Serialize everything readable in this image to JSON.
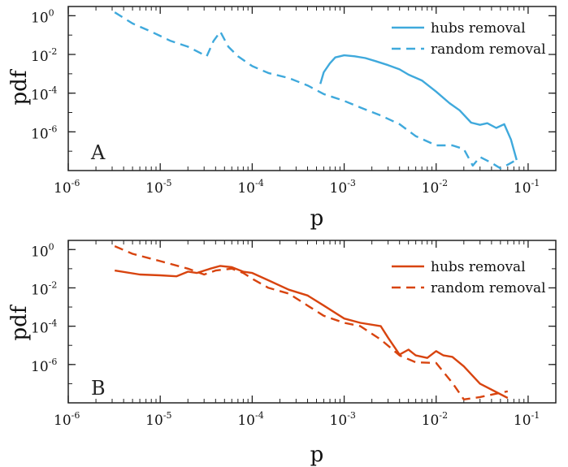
{
  "chart_data": [
    {
      "type": "line",
      "panel_label": "A",
      "xlabel": "p",
      "ylabel": "pdf",
      "xscale": "log",
      "yscale": "log",
      "xlim": [
        1e-06,
        0.2
      ],
      "ylim": [
        1e-08,
        3
      ],
      "x_ticks": [
        {
          "base": "10",
          "exp": "-6"
        },
        {
          "base": "10",
          "exp": "-5"
        },
        {
          "base": "10",
          "exp": "-4"
        },
        {
          "base": "10",
          "exp": "-3"
        },
        {
          "base": "10",
          "exp": "-2"
        },
        {
          "base": "10",
          "exp": "-1"
        }
      ],
      "y_ticks": [
        {
          "base": "10",
          "exp": "0"
        },
        {
          "base": "10",
          "exp": "-2"
        },
        {
          "base": "10",
          "exp": "-4"
        },
        {
          "base": "10",
          "exp": "-6"
        }
      ],
      "legend_position": "top-right",
      "grid": false,
      "color": "#3fa9dc",
      "series": [
        {
          "name": "hubs removal",
          "style": "solid",
          "x": [
            0.00055,
            0.0006,
            0.0007,
            0.0008,
            0.001,
            0.0013,
            0.0017,
            0.0022,
            0.003,
            0.004,
            0.005,
            0.007,
            0.01,
            0.014,
            0.018,
            0.024,
            0.03,
            0.036,
            0.045,
            0.055,
            0.065,
            0.075
          ],
          "y": [
            0.0003,
            0.0012,
            0.0035,
            0.007,
            0.009,
            0.008,
            0.0065,
            0.0045,
            0.0028,
            0.0017,
            0.0009,
            0.00045,
            0.00012,
            3e-05,
            1.3e-05,
            3e-06,
            2.3e-06,
            2.8e-06,
            1.6e-06,
            2.5e-06,
            4e-07,
            3.5e-08
          ]
        },
        {
          "name": "random removal",
          "style": "dashed",
          "x": [
            3.2e-06,
            5e-06,
            8e-06,
            1.3e-05,
            2e-05,
            3.2e-05,
            3.8e-05,
            4.5e-05,
            5.5e-05,
            7e-05,
            0.0001,
            0.00015,
            0.00025,
            0.0004,
            0.0006,
            0.001,
            0.0015,
            0.0025,
            0.004,
            0.006,
            0.01,
            0.015,
            0.02,
            0.025,
            0.03,
            0.04,
            0.05,
            0.06,
            0.07
          ],
          "y": [
            1.5,
            0.4,
            0.15,
            0.05,
            0.025,
            0.008,
            0.05,
            0.15,
            0.025,
            0.008,
            0.0025,
            0.0011,
            0.0006,
            0.00025,
            9e-05,
            4e-05,
            1.8e-05,
            7e-06,
            2.5e-06,
            6e-07,
            2e-07,
            2e-07,
            1.3e-07,
            1.8e-08,
            5e-08,
            2.5e-08,
            1.3e-08,
            2e-08,
            3e-08
          ]
        }
      ]
    },
    {
      "type": "line",
      "panel_label": "B",
      "xlabel": "p",
      "ylabel": "pdf",
      "xscale": "log",
      "yscale": "log",
      "xlim": [
        1e-06,
        0.2
      ],
      "ylim": [
        1e-08,
        3
      ],
      "x_ticks": [
        {
          "base": "10",
          "exp": "-6"
        },
        {
          "base": "10",
          "exp": "-5"
        },
        {
          "base": "10",
          "exp": "-4"
        },
        {
          "base": "10",
          "exp": "-3"
        },
        {
          "base": "10",
          "exp": "-2"
        },
        {
          "base": "10",
          "exp": "-1"
        }
      ],
      "y_ticks": [
        {
          "base": "10",
          "exp": "0"
        },
        {
          "base": "10",
          "exp": "-2"
        },
        {
          "base": "10",
          "exp": "-4"
        },
        {
          "base": "10",
          "exp": "-6"
        }
      ],
      "legend_position": "top-right",
      "grid": false,
      "color": "#d8440f",
      "series": [
        {
          "name": "hubs removal",
          "style": "solid",
          "x": [
            3.2e-06,
            6e-06,
            1e-05,
            1.5e-05,
            2e-05,
            2.5e-05,
            3.5e-05,
            4.5e-05,
            6e-05,
            8e-05,
            0.0001,
            0.00015,
            0.00025,
            0.0004,
            0.0006,
            0.001,
            0.0015,
            0.0025,
            0.003,
            0.004,
            0.005,
            0.006,
            0.008,
            0.01,
            0.012,
            0.015,
            0.02,
            0.03,
            0.06
          ],
          "y": [
            0.08,
            0.05,
            0.045,
            0.04,
            0.07,
            0.06,
            0.1,
            0.14,
            0.12,
            0.07,
            0.06,
            0.025,
            0.008,
            0.004,
            0.0012,
            0.00025,
            0.00015,
            0.0001,
            2.5e-05,
            3.3e-06,
            6e-06,
            3e-06,
            2.2e-06,
            5e-06,
            3e-06,
            2.5e-06,
            8e-07,
            1e-07,
            1.8e-08
          ]
        },
        {
          "name": "random removal",
          "style": "dashed",
          "x": [
            3.2e-06,
            5e-06,
            1e-05,
            2e-05,
            3e-05,
            4e-05,
            6e-05,
            8e-05,
            0.0001,
            0.00015,
            0.00025,
            0.0004,
            0.0006,
            0.001,
            0.0015,
            0.0025,
            0.004,
            0.006,
            0.01,
            0.015,
            0.02,
            0.03,
            0.045,
            0.06
          ],
          "y": [
            1.5,
            0.6,
            0.25,
            0.1,
            0.05,
            0.08,
            0.1,
            0.06,
            0.03,
            0.01,
            0.005,
            0.0012,
            0.00035,
            0.00015,
            0.0001,
            2e-05,
            3e-06,
            1.3e-06,
            1.2e-06,
            1.1e-07,
            1.5e-08,
            2e-08,
            3e-08,
            4e-08
          ]
        }
      ]
    }
  ]
}
